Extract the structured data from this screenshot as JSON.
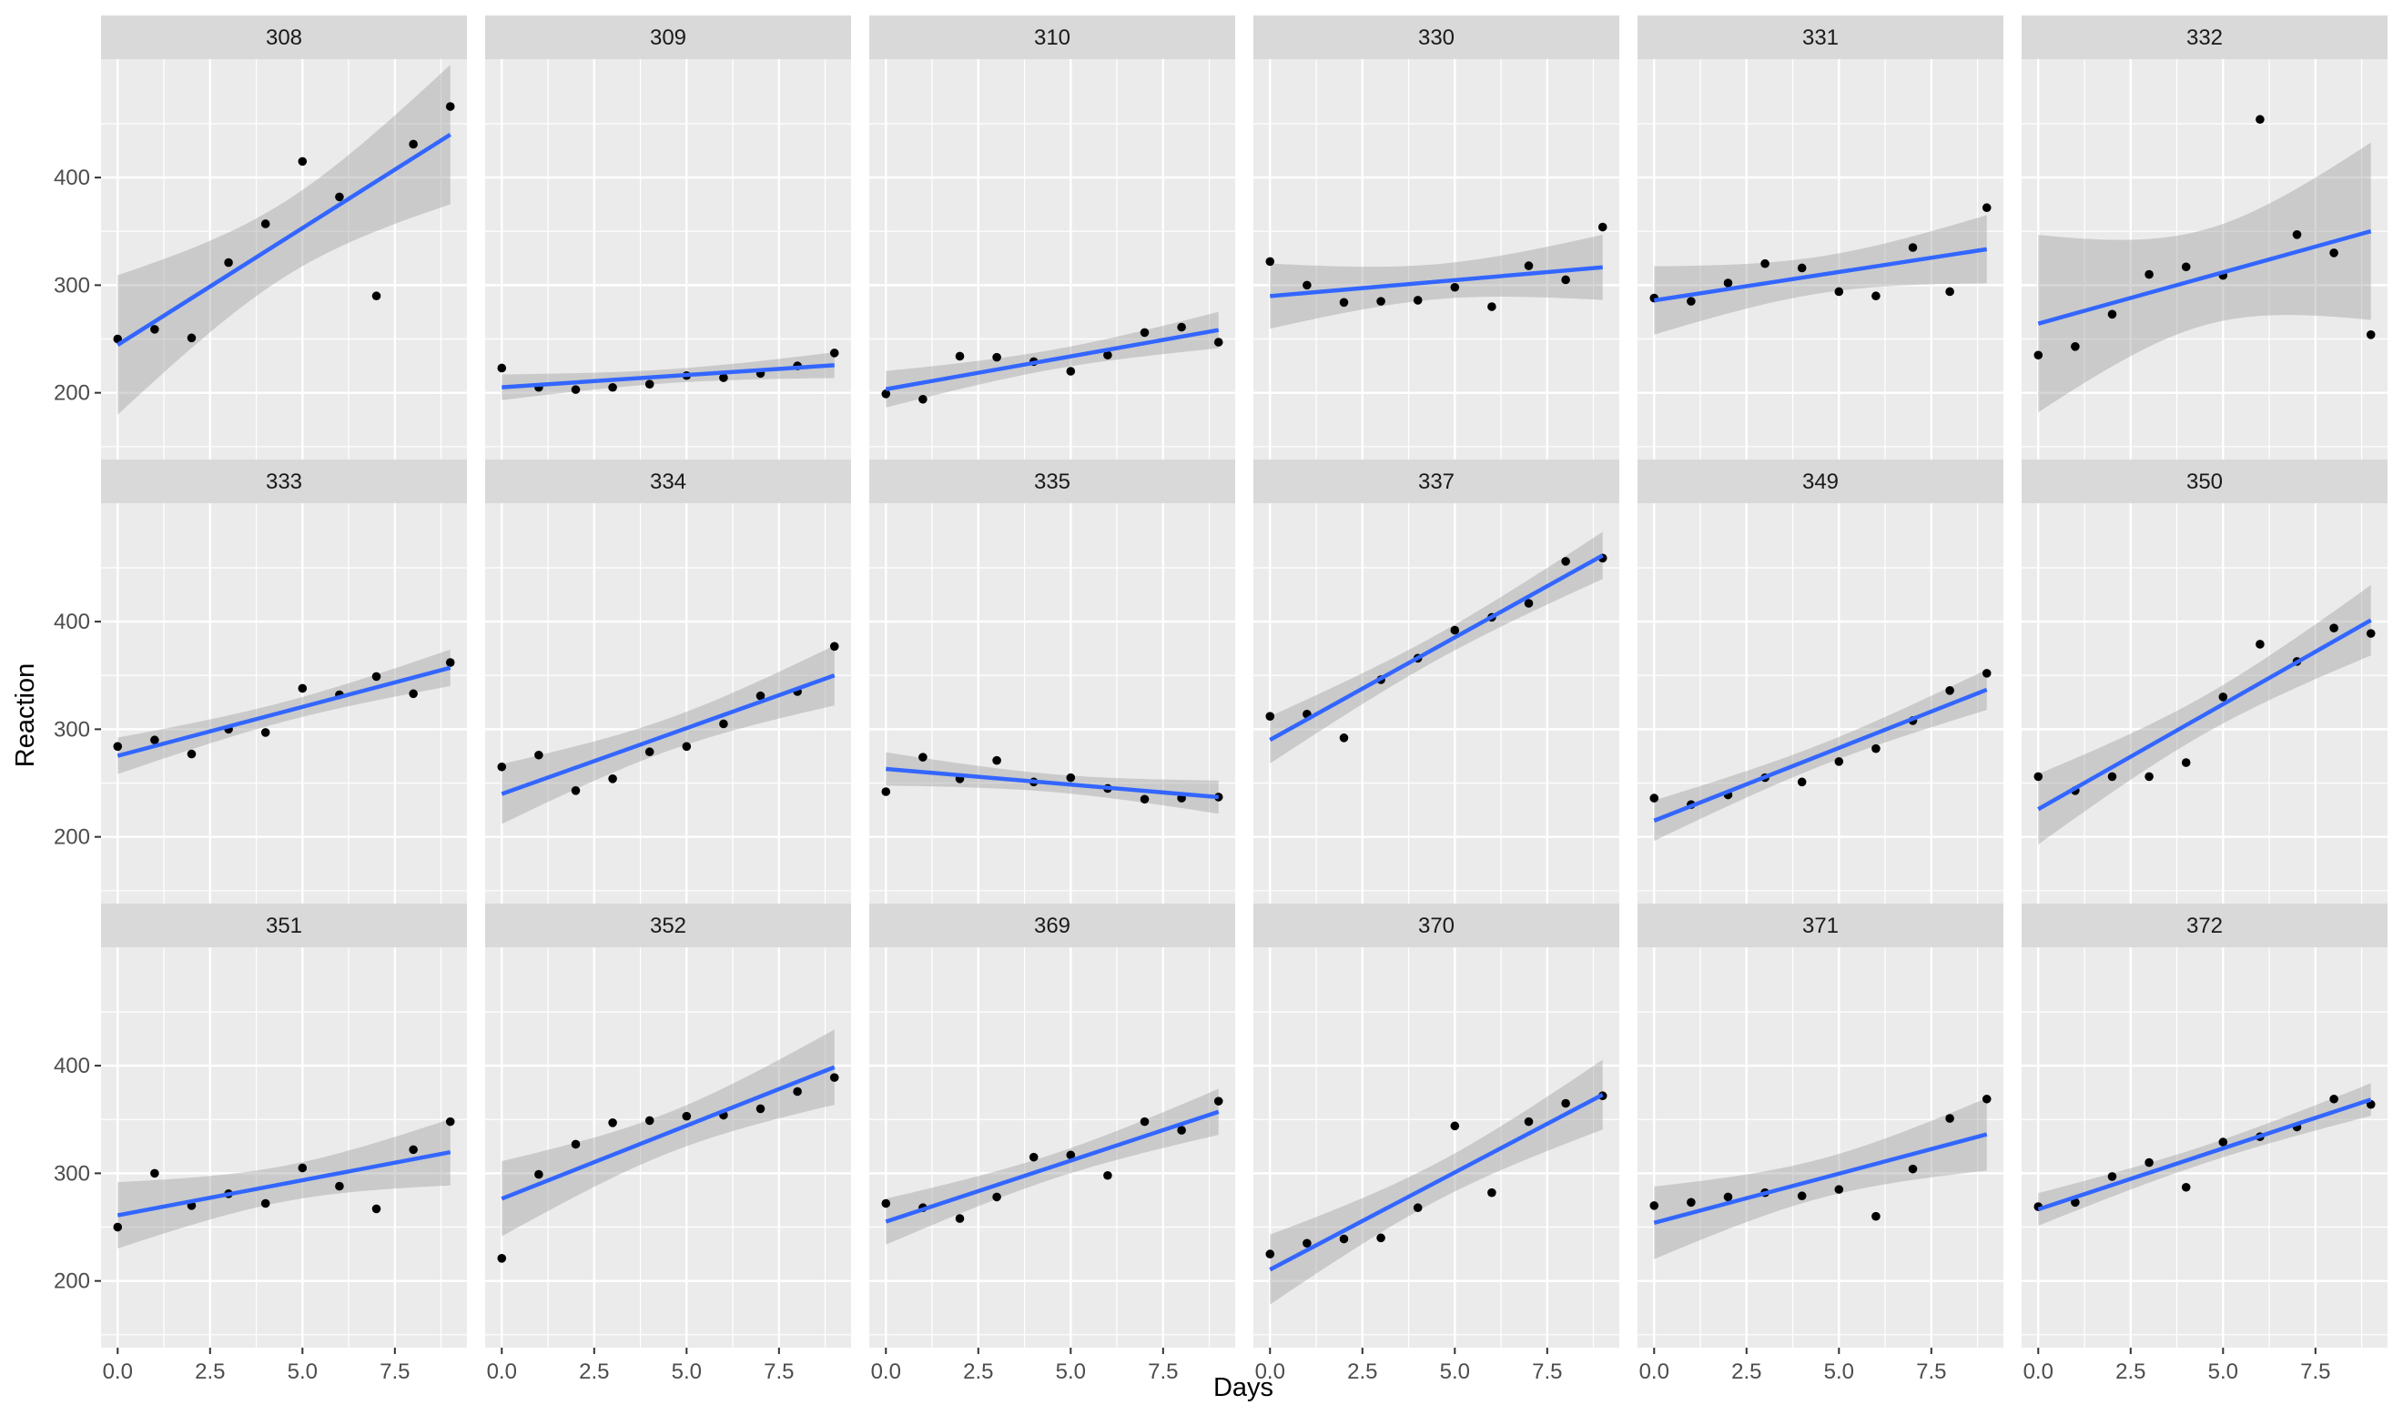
{
  "chart_data": {
    "type": "scatter",
    "facet_by": "Subject",
    "xlabel": "Days",
    "ylabel": "Reaction",
    "xlim": [
      -0.45,
      9.45
    ],
    "ylim": [
      138,
      510
    ],
    "x_ticks": [
      0,
      2.5,
      5,
      7.5
    ],
    "x_tick_labels": [
      "0.0",
      "2.5",
      "5.0",
      "7.5"
    ],
    "y_ticks": [
      200,
      300,
      400
    ],
    "y_tick_labels": [
      "200",
      "300",
      "400"
    ],
    "grid": true,
    "trend": "linear fit with confidence band",
    "colors": {
      "panel_bg": "#ebebeb",
      "strip_bg": "#d9d9d9",
      "grid_major": "#ffffff",
      "point": "#000000",
      "line": "#3366ff",
      "band": "#999999"
    },
    "panels": [
      {
        "subject": "308",
        "x": [
          0,
          1,
          2,
          3,
          4,
          5,
          6,
          7,
          8,
          9
        ],
        "y": [
          250,
          259,
          251,
          321,
          357,
          415,
          382,
          290,
          431,
          466
        ]
      },
      {
        "subject": "309",
        "x": [
          0,
          1,
          2,
          3,
          4,
          5,
          6,
          7,
          8,
          9
        ],
        "y": [
          223,
          205,
          203,
          205,
          208,
          216,
          214,
          218,
          225,
          237
        ]
      },
      {
        "subject": "310",
        "x": [
          0,
          1,
          2,
          3,
          4,
          5,
          6,
          7,
          8,
          9
        ],
        "y": [
          199,
          194,
          234,
          233,
          229,
          220,
          235,
          256,
          261,
          247
        ]
      },
      {
        "subject": "330",
        "x": [
          0,
          1,
          2,
          3,
          4,
          5,
          6,
          7,
          8,
          9
        ],
        "y": [
          322,
          300,
          284,
          285,
          286,
          298,
          280,
          318,
          305,
          354
        ]
      },
      {
        "subject": "331",
        "x": [
          0,
          1,
          2,
          3,
          4,
          5,
          6,
          7,
          8,
          9
        ],
        "y": [
          288,
          285,
          302,
          320,
          316,
          294,
          290,
          335,
          294,
          372
        ]
      },
      {
        "subject": "332",
        "x": [
          0,
          1,
          2,
          3,
          4,
          5,
          6,
          7,
          8,
          9
        ],
        "y": [
          235,
          243,
          273,
          310,
          317,
          309,
          454,
          347,
          330,
          254
        ]
      },
      {
        "subject": "333",
        "x": [
          0,
          1,
          2,
          3,
          4,
          5,
          6,
          7,
          8,
          9
        ],
        "y": [
          284,
          290,
          277,
          300,
          297,
          338,
          332,
          349,
          333,
          362
        ]
      },
      {
        "subject": "334",
        "x": [
          0,
          1,
          2,
          3,
          4,
          5,
          6,
          7,
          8,
          9
        ],
        "y": [
          265,
          276,
          243,
          254,
          279,
          284,
          305,
          331,
          335,
          377
        ]
      },
      {
        "subject": "335",
        "x": [
          0,
          1,
          2,
          3,
          4,
          5,
          6,
          7,
          8,
          9
        ],
        "y": [
          242,
          274,
          254,
          271,
          251,
          255,
          245,
          235,
          236,
          237
        ]
      },
      {
        "subject": "337",
        "x": [
          0,
          1,
          2,
          3,
          4,
          5,
          6,
          7,
          8,
          9
        ],
        "y": [
          312,
          314,
          292,
          346,
          366,
          392,
          404,
          417,
          456,
          459
        ]
      },
      {
        "subject": "349",
        "x": [
          0,
          1,
          2,
          3,
          4,
          5,
          6,
          7,
          8,
          9
        ],
        "y": [
          236,
          230,
          239,
          255,
          251,
          270,
          282,
          308,
          336,
          352
        ]
      },
      {
        "subject": "350",
        "x": [
          0,
          1,
          2,
          3,
          4,
          5,
          6,
          7,
          8,
          9
        ],
        "y": [
          256,
          243,
          256,
          256,
          269,
          330,
          379,
          363,
          394,
          389
        ]
      },
      {
        "subject": "351",
        "x": [
          0,
          1,
          2,
          3,
          4,
          5,
          6,
          7,
          8,
          9
        ],
        "y": [
          250,
          300,
          270,
          281,
          272,
          305,
          288,
          267,
          322,
          348
        ]
      },
      {
        "subject": "352",
        "x": [
          0,
          1,
          2,
          3,
          4,
          5,
          6,
          7,
          8,
          9
        ],
        "y": [
          221,
          299,
          327,
          347,
          349,
          353,
          354,
          360,
          376,
          389
        ]
      },
      {
        "subject": "369",
        "x": [
          0,
          1,
          2,
          3,
          4,
          5,
          6,
          7,
          8,
          9
        ],
        "y": [
          272,
          268,
          258,
          278,
          315,
          317,
          298,
          348,
          340,
          367
        ]
      },
      {
        "subject": "370",
        "x": [
          0,
          1,
          2,
          3,
          4,
          5,
          6,
          7,
          8,
          9
        ],
        "y": [
          225,
          235,
          239,
          240,
          268,
          344,
          282,
          348,
          365,
          372
        ]
      },
      {
        "subject": "371",
        "x": [
          0,
          1,
          2,
          3,
          4,
          5,
          6,
          7,
          8,
          9
        ],
        "y": [
          270,
          273,
          278,
          282,
          279,
          285,
          260,
          304,
          351,
          369
        ]
      },
      {
        "subject": "372",
        "x": [
          0,
          1,
          2,
          3,
          4,
          5,
          6,
          7,
          8,
          9
        ],
        "y": [
          269,
          273,
          297,
          310,
          287,
          329,
          334,
          343,
          369,
          364
        ]
      }
    ]
  }
}
